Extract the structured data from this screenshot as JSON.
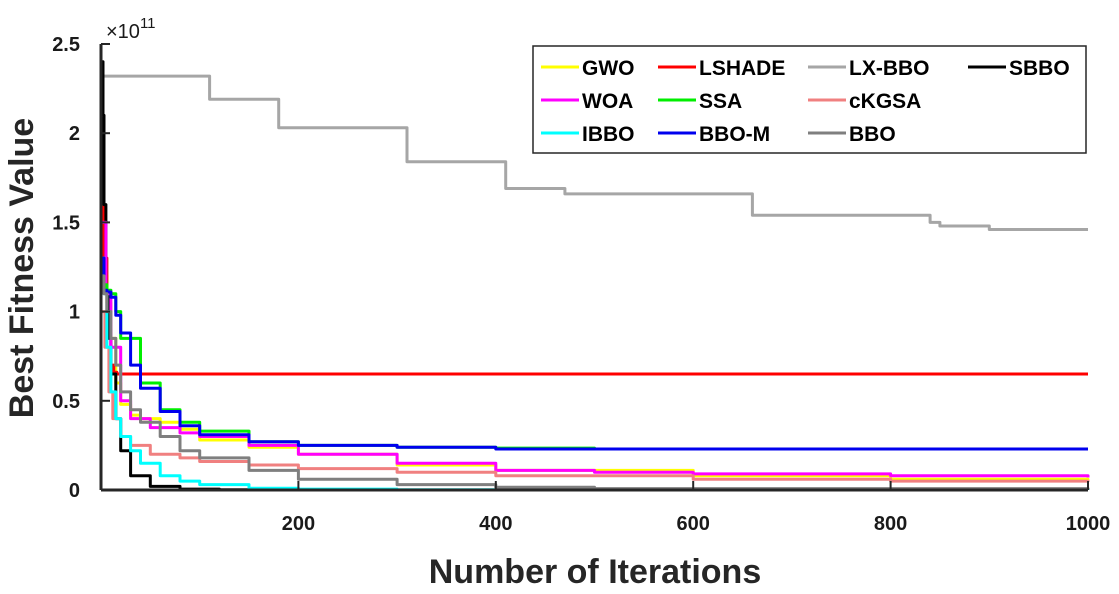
{
  "chart_data": {
    "type": "line",
    "xlabel": "Number of Iterations",
    "ylabel": "Best Fitness Value",
    "xlim": [
      0,
      1000
    ],
    "ylim": [
      0,
      2.5
    ],
    "y_multiplier_label": "×10",
    "y_multiplier_exponent": "11",
    "xticks": [
      200,
      400,
      600,
      800,
      1000
    ],
    "xtick_labels": [
      "200",
      "400",
      "600",
      "800",
      "1000"
    ],
    "yticks": [
      0,
      0.5,
      1,
      1.5,
      2,
      2.5
    ],
    "ytick_labels": [
      "0",
      "0.5",
      "1",
      "1.5",
      "2",
      "2.5"
    ],
    "grid": false,
    "legend_position": "top-right",
    "series": [
      {
        "name": "GWO",
        "color": "#ffff00",
        "x": [
          1,
          3,
          6,
          10,
          15,
          20,
          30,
          40,
          60,
          80,
          100,
          150,
          200,
          300,
          400,
          600,
          800,
          1000
        ],
        "y": [
          1.3,
          1.2,
          1.05,
          0.85,
          0.6,
          0.48,
          0.42,
          0.4,
          0.38,
          0.34,
          0.28,
          0.24,
          0.2,
          0.14,
          0.11,
          0.08,
          0.06,
          0.055
        ]
      },
      {
        "name": "LSHADE",
        "color": "#ff0000",
        "x": [
          1,
          3,
          6,
          10,
          13,
          16,
          20,
          50,
          200,
          1000
        ],
        "y": [
          1.8,
          1.3,
          0.9,
          0.7,
          0.66,
          0.65,
          0.65,
          0.65,
          0.65,
          0.65
        ]
      },
      {
        "name": "LX-BBO",
        "color": "#a6a6a6",
        "x": [
          1,
          100,
          110,
          170,
          180,
          300,
          310,
          400,
          410,
          460,
          470,
          650,
          660,
          700,
          840,
          850,
          900,
          1000
        ],
        "y": [
          2.32,
          2.32,
          2.19,
          2.19,
          2.03,
          2.03,
          1.84,
          1.84,
          1.69,
          1.69,
          1.66,
          1.66,
          1.54,
          1.54,
          1.5,
          1.48,
          1.46,
          1.46
        ]
      },
      {
        "name": "SBBO",
        "color": "#000000",
        "x": [
          1,
          2,
          3,
          5,
          8,
          10,
          15,
          20,
          30,
          50,
          80,
          120,
          200,
          300,
          1000
        ],
        "y": [
          2.4,
          2.1,
          1.6,
          1.1,
          0.85,
          0.65,
          0.4,
          0.22,
          0.08,
          0.02,
          0.005,
          0.001,
          0.0,
          0.0,
          0.0
        ]
      },
      {
        "name": "WOA",
        "color": "#ff00ff",
        "x": [
          1,
          5,
          10,
          20,
          30,
          50,
          80,
          100,
          150,
          200,
          300,
          400,
          500,
          600,
          800,
          1000
        ],
        "y": [
          1.5,
          1.1,
          0.8,
          0.5,
          0.4,
          0.35,
          0.32,
          0.3,
          0.25,
          0.2,
          0.15,
          0.11,
          0.1,
          0.09,
          0.08,
          0.07
        ]
      },
      {
        "name": "SSA",
        "color": "#00ee00",
        "x": [
          1,
          3,
          6,
          10,
          15,
          20,
          40,
          60,
          80,
          100,
          150,
          200,
          300,
          400,
          500,
          1000
        ],
        "y": [
          1.3,
          1.15,
          1.12,
          1.1,
          1.0,
          0.85,
          0.6,
          0.45,
          0.38,
          0.33,
          0.27,
          0.25,
          0.24,
          0.235,
          0.23,
          0.23
        ]
      },
      {
        "name": "cKGSA",
        "color": "#f08080",
        "x": [
          1,
          4,
          8,
          12,
          20,
          30,
          50,
          80,
          100,
          150,
          200,
          300,
          400,
          600,
          800,
          1000
        ],
        "y": [
          1.0,
          0.8,
          0.55,
          0.4,
          0.3,
          0.25,
          0.2,
          0.18,
          0.16,
          0.14,
          0.12,
          0.1,
          0.08,
          0.06,
          0.05,
          0.045
        ]
      },
      {
        "name": "IBBO",
        "color": "#00ffff",
        "x": [
          1,
          3,
          6,
          10,
          15,
          20,
          30,
          40,
          60,
          80,
          100,
          150,
          200,
          300,
          1000
        ],
        "y": [
          1.3,
          1.1,
          0.8,
          0.55,
          0.4,
          0.3,
          0.22,
          0.15,
          0.08,
          0.05,
          0.03,
          0.01,
          0.005,
          0.001,
          0.0
        ]
      },
      {
        "name": "BBO-M",
        "color": "#0000ee",
        "x": [
          1,
          3,
          6,
          10,
          15,
          20,
          30,
          40,
          60,
          80,
          100,
          150,
          200,
          300,
          400,
          500,
          700,
          1000
        ],
        "y": [
          1.3,
          1.12,
          1.11,
          1.08,
          0.98,
          0.88,
          0.7,
          0.57,
          0.44,
          0.36,
          0.31,
          0.27,
          0.25,
          0.24,
          0.23,
          0.23,
          0.23,
          0.23
        ]
      },
      {
        "name": "BBO",
        "color": "#7f7f7f",
        "x": [
          1,
          3,
          6,
          10,
          15,
          20,
          30,
          40,
          60,
          80,
          100,
          150,
          200,
          300,
          400,
          500,
          1000
        ],
        "y": [
          1.2,
          1.1,
          1.0,
          0.85,
          0.7,
          0.55,
          0.45,
          0.38,
          0.3,
          0.22,
          0.18,
          0.11,
          0.06,
          0.03,
          0.015,
          0.008,
          0.003
        ]
      }
    ]
  }
}
